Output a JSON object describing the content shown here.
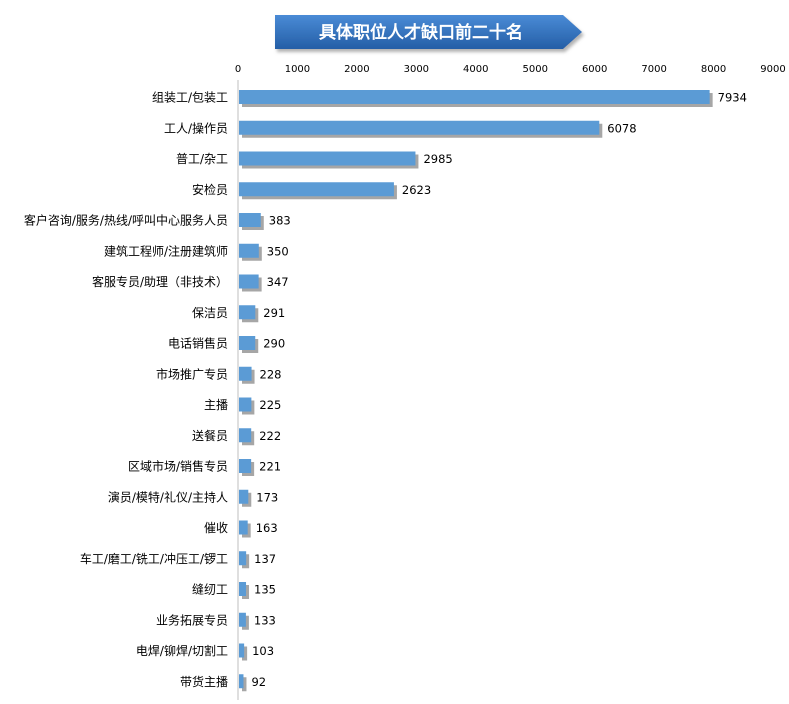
{
  "chart_data": {
    "type": "bar",
    "orientation": "horizontal",
    "title": "具体职位人才缺口前二十名",
    "xlabel": "",
    "ylabel": "",
    "xlim": [
      0,
      9000
    ],
    "x_ticks": [
      0,
      1000,
      2000,
      3000,
      4000,
      5000,
      6000,
      7000,
      8000,
      9000
    ],
    "x_axis_position": "top",
    "grid": false,
    "legend": "none",
    "categories": [
      "组装工/包装工",
      "工人/操作员",
      "普工/杂工",
      "安检员",
      "客户咨询/服务/热线/呼叫中心服务人员",
      "建筑工程师/注册建筑师",
      "客服专员/助理（非技术）",
      "保洁员",
      "电话销售员",
      "市场推广专员",
      "主播",
      "送餐员",
      "区域市场/销售专员",
      "演员/模特/礼仪/主持人",
      "催收",
      "车工/磨工/铣工/冲压工/锣工",
      "缝纫工",
      "业务拓展专员",
      "电焊/铆焊/切割工",
      "带货主播"
    ],
    "values": [
      7934,
      6078,
      2985,
      2623,
      383,
      350,
      347,
      291,
      290,
      228,
      225,
      222,
      221,
      173,
      163,
      137,
      135,
      133,
      103,
      92
    ],
    "colors": {
      "bar": "#5b9bd5",
      "bar_shadow": "#a6a6a6",
      "title_fill": "#2e6fb8",
      "title_text": "#ffffff",
      "axis": "#bfbfbf",
      "text": "#000000"
    }
  }
}
